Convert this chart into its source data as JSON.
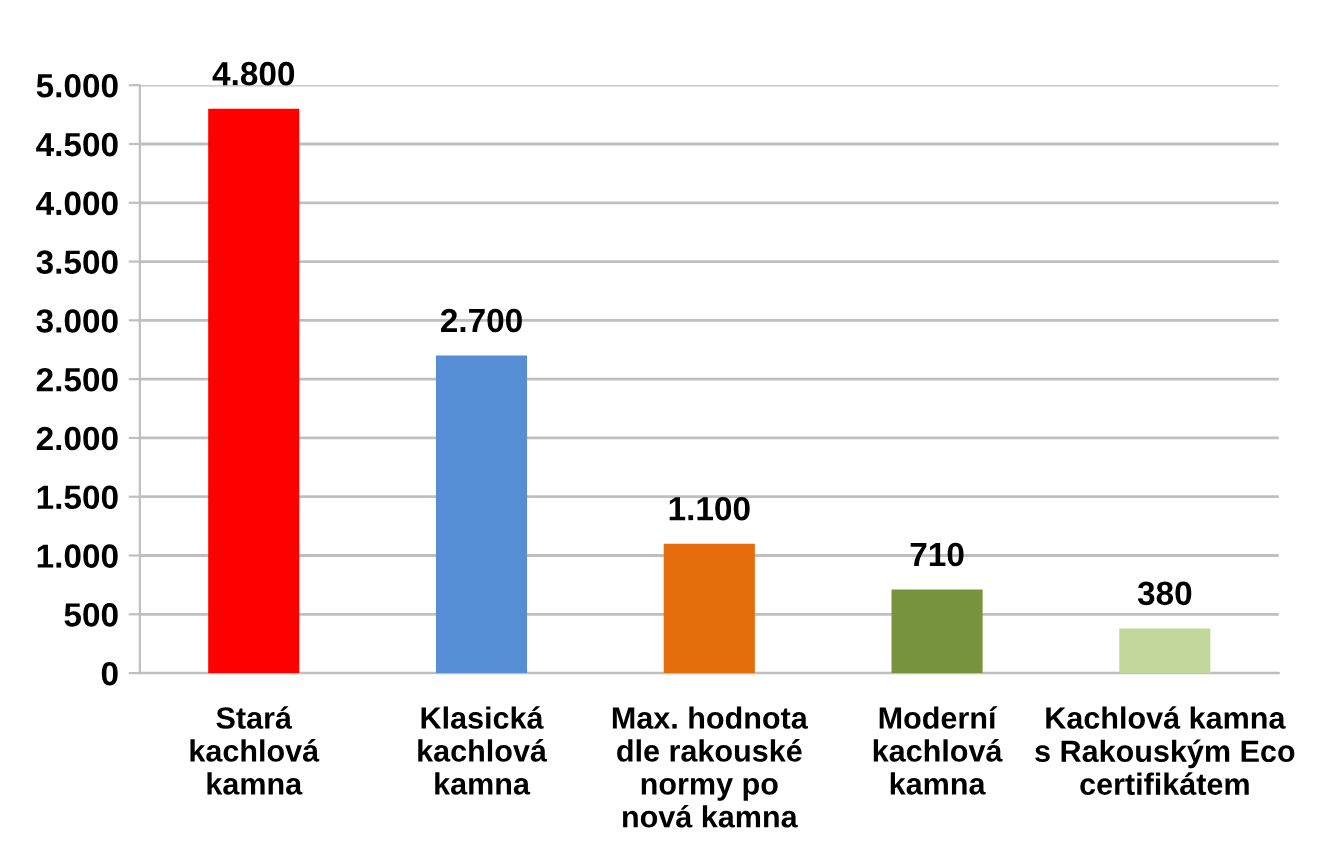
{
  "chart_data": {
    "type": "bar",
    "categories": [
      "Stará\nkachlová\nkamna",
      "Klasická\nkachlová\nkamna",
      "Max. hodnota\ndle rakouské\nnormy po\nnová kamna",
      "Moderní\nkachlová\nkamna",
      "Kachlová kamna\ns Rakouským Eco\ncertifikátem"
    ],
    "values": [
      4800,
      2700,
      1100,
      710,
      380
    ],
    "colors": [
      "#ff0000",
      "#558ed5",
      "#e46c0a",
      "#77933c",
      "#c3d69b"
    ],
    "value_labels": [
      "4.800",
      "2.700",
      "1.100",
      "710",
      "380"
    ],
    "ylim": [
      0,
      5000
    ],
    "yticks": [
      0,
      {
        "value": 500,
        "label": "500"
      },
      {
        "value": 1000,
        "label": "1.000"
      },
      {
        "value": 1500,
        "label": "1.500"
      },
      {
        "value": 2000,
        "label": "2.000"
      },
      {
        "value": 2500,
        "label": "2.500"
      },
      {
        "value": 3000,
        "label": "3.000"
      },
      {
        "value": 3500,
        "label": "3.500"
      },
      {
        "value": 4000,
        "label": "4.000"
      },
      {
        "value": 4500,
        "label": "4.500"
      },
      {
        "value": 5000,
        "label": "5.000"
      }
    ],
    "grid": "y",
    "legend": false
  }
}
